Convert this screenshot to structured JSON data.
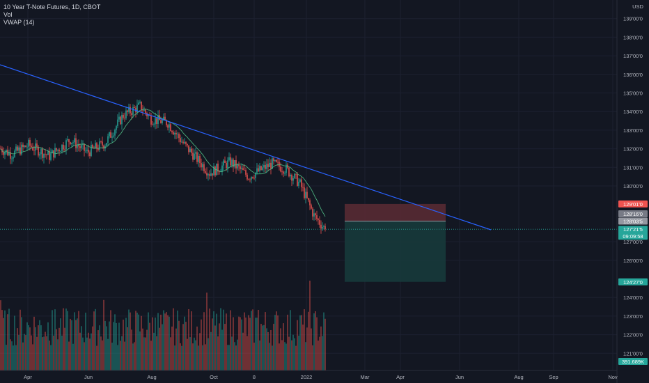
{
  "legend": {
    "symbol": "10 Year T-Note Futures, 1D, CBOT",
    "volume": "Vol",
    "vwap": "VWAP (14)"
  },
  "colors": {
    "background": "#131722",
    "up": "#26a69a",
    "down": "#ef5350",
    "trendline": "#2962ff",
    "vwap": "#4caf7d",
    "risk_zone": "#5c2b34",
    "reward_zone": "#173c3c",
    "axis_text": "#b2b5be"
  },
  "currency": "USD",
  "chart_data": {
    "type": "candlestick",
    "y_axis": {
      "ticks": [
        {
          "value": 139,
          "label": "139'00'0"
        },
        {
          "value": 138,
          "label": "138'00'0"
        },
        {
          "value": 137,
          "label": "137'00'0"
        },
        {
          "value": 136,
          "label": "136'00'0"
        },
        {
          "value": 135,
          "label": "135'00'0"
        },
        {
          "value": 134,
          "label": "134'00'0"
        },
        {
          "value": 133,
          "label": "133'00'0"
        },
        {
          "value": 132,
          "label": "132'00'0"
        },
        {
          "value": 131,
          "label": "131'00'0"
        },
        {
          "value": 130,
          "label": "130'00'0"
        },
        {
          "value": 127,
          "label": "127'00'0"
        },
        {
          "value": 126,
          "label": "126'00'0"
        },
        {
          "value": 124,
          "label": "124'00'0"
        },
        {
          "value": 123,
          "label": "123'00'0"
        },
        {
          "value": 122,
          "label": "122'00'0"
        },
        {
          "value": 121,
          "label": "121'00'0"
        }
      ]
    },
    "x_axis": {
      "labels": [
        "Apr",
        "Jun",
        "Aug",
        "Oct",
        "8",
        "2022",
        "Mar",
        "Apr",
        "Jun",
        "Aug",
        "Sep",
        "Nov"
      ]
    },
    "price_tags": [
      {
        "label": "129'01'0",
        "value": 129.03,
        "color": "#ef5350"
      },
      {
        "label": "128'16'0",
        "value": 128.5,
        "color": "#787b86"
      },
      {
        "label": "128'03'5",
        "value": 128.11,
        "color": "#9598a1"
      },
      {
        "label": "127'21'5",
        "value": 127.67,
        "color": "#26a69a",
        "countdown": "09:09:58"
      },
      {
        "label": "124'27'0",
        "value": 124.84,
        "color": "#26a69a"
      }
    ],
    "volume_tag": "391.689K",
    "position_tool": {
      "entry": 128.11,
      "stop": 129.03,
      "target": 124.84
    },
    "vwap_period": 14,
    "ohlc_series": "synthetic daily candles approximating the 10Y T-Note decline from ~132 to ~127.7"
  }
}
